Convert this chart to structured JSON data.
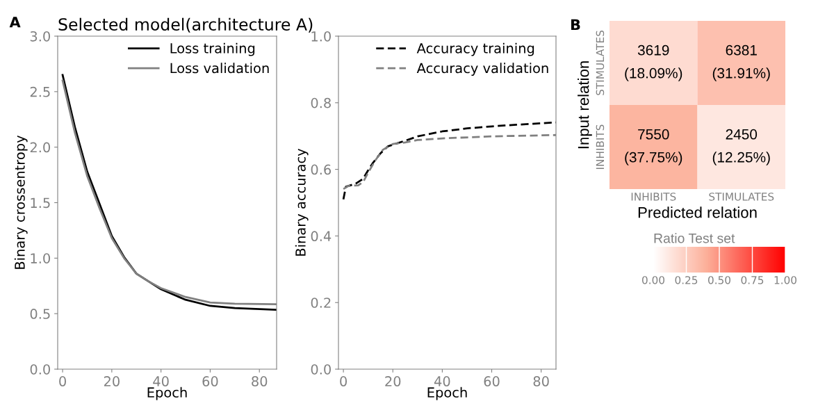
{
  "chart_data": [
    {
      "type": "line",
      "title": "Selected model(architecture A)",
      "annotations": [
        "A"
      ],
      "xlabel": "Epoch",
      "ylabel": "Binary crossentropy",
      "series": [
        {
          "name": "Loss training",
          "color": "#000000",
          "line_style": "solid",
          "x": [
            0,
            5,
            10,
            15,
            20,
            25,
            30,
            35,
            40,
            50,
            60,
            70,
            87
          ],
          "values": [
            2.65,
            2.18,
            1.78,
            1.49,
            1.2,
            1.01,
            0.86,
            0.79,
            0.72,
            0.625,
            0.57,
            0.55,
            0.535
          ]
        },
        {
          "name": "Loss validation",
          "color": "#808080",
          "line_style": "solid",
          "x": [
            0,
            5,
            10,
            15,
            20,
            25,
            30,
            35,
            40,
            50,
            60,
            70,
            87
          ],
          "values": [
            2.6,
            2.13,
            1.74,
            1.45,
            1.18,
            1.0,
            0.86,
            0.79,
            0.73,
            0.65,
            0.6,
            0.59,
            0.585
          ]
        }
      ],
      "xlim": [
        -2,
        87
      ],
      "ylim": [
        0,
        3.0
      ],
      "xticks": [
        0,
        20,
        40,
        60,
        80
      ],
      "yticks": [
        {
          "value": 0,
          "label": "0.0"
        },
        {
          "value": 0.5,
          "label": "0.5"
        },
        {
          "value": 1,
          "label": "1.0"
        },
        {
          "value": 1.5,
          "label": "1.5"
        },
        {
          "value": 2,
          "label": "2.0"
        },
        {
          "value": 2.5,
          "label": "2.5"
        },
        {
          "value": 3,
          "label": "3.0"
        }
      ],
      "grid": false,
      "legend": "top right"
    },
    {
      "type": "line",
      "xlabel": "Epoch",
      "ylabel": "Binary accuracy",
      "series": [
        {
          "name": "Accuracy training",
          "color": "#000000",
          "line_style": "dashed",
          "x": [
            0,
            1,
            5,
            8,
            10,
            12,
            15,
            18,
            20,
            25,
            30,
            40,
            50,
            60,
            70,
            86
          ],
          "values": [
            0.51,
            0.548,
            0.557,
            0.572,
            0.597,
            0.62,
            0.648,
            0.669,
            0.674,
            0.686,
            0.699,
            0.714,
            0.723,
            0.729,
            0.734,
            0.741
          ]
        },
        {
          "name": "Accuracy validation",
          "color": "#808080",
          "line_style": "dashed",
          "x": [
            0,
            2,
            6,
            8,
            10,
            13,
            16,
            20,
            25,
            30,
            40,
            60,
            86
          ],
          "values": [
            0.541,
            0.55,
            0.552,
            0.562,
            0.59,
            0.628,
            0.659,
            0.676,
            0.681,
            0.688,
            0.693,
            0.699,
            0.703
          ]
        }
      ],
      "xlim": [
        -2,
        86
      ],
      "ylim": [
        0,
        1.0
      ],
      "xticks": [
        0,
        20,
        40,
        60,
        80
      ],
      "yticks": [
        {
          "value": 0,
          "label": "0.0"
        },
        {
          "value": 0.2,
          "label": "0.2"
        },
        {
          "value": 0.4,
          "label": "0.4"
        },
        {
          "value": 0.6,
          "label": "0.6"
        },
        {
          "value": 0.8,
          "label": "0.8"
        },
        {
          "value": 1,
          "label": "1.0"
        }
      ],
      "grid": false,
      "legend": "top right"
    },
    {
      "type": "heatmap",
      "annotations": [
        "B"
      ],
      "xlabel": "Predicted relation",
      "ylabel": "Input relation",
      "clabel": "Ratio Test set",
      "categories": [
        "INHIBITS",
        "STIMULATES"
      ],
      "y_categories": [
        "STIMULATES",
        "INHIBITS"
      ],
      "cells": [
        [
          0.1809,
          0.3191
        ],
        [
          0.3775,
          0.1225
        ]
      ],
      "cell_labels": [
        [
          "3619\n(18.09%)",
          "6381\n(31.91%)"
        ],
        [
          "7550\n(37.75%)",
          "2450\n(12.25%)"
        ]
      ],
      "clim": [
        0,
        1
      ],
      "cticks": [
        {
          "value": 0,
          "label": "0.00"
        },
        {
          "value": 0.25,
          "label": "0.25"
        },
        {
          "value": 0.5,
          "label": "0.50"
        },
        {
          "value": 0.75,
          "label": "0.75"
        },
        {
          "value": 1,
          "label": "1.00"
        }
      ]
    }
  ]
}
